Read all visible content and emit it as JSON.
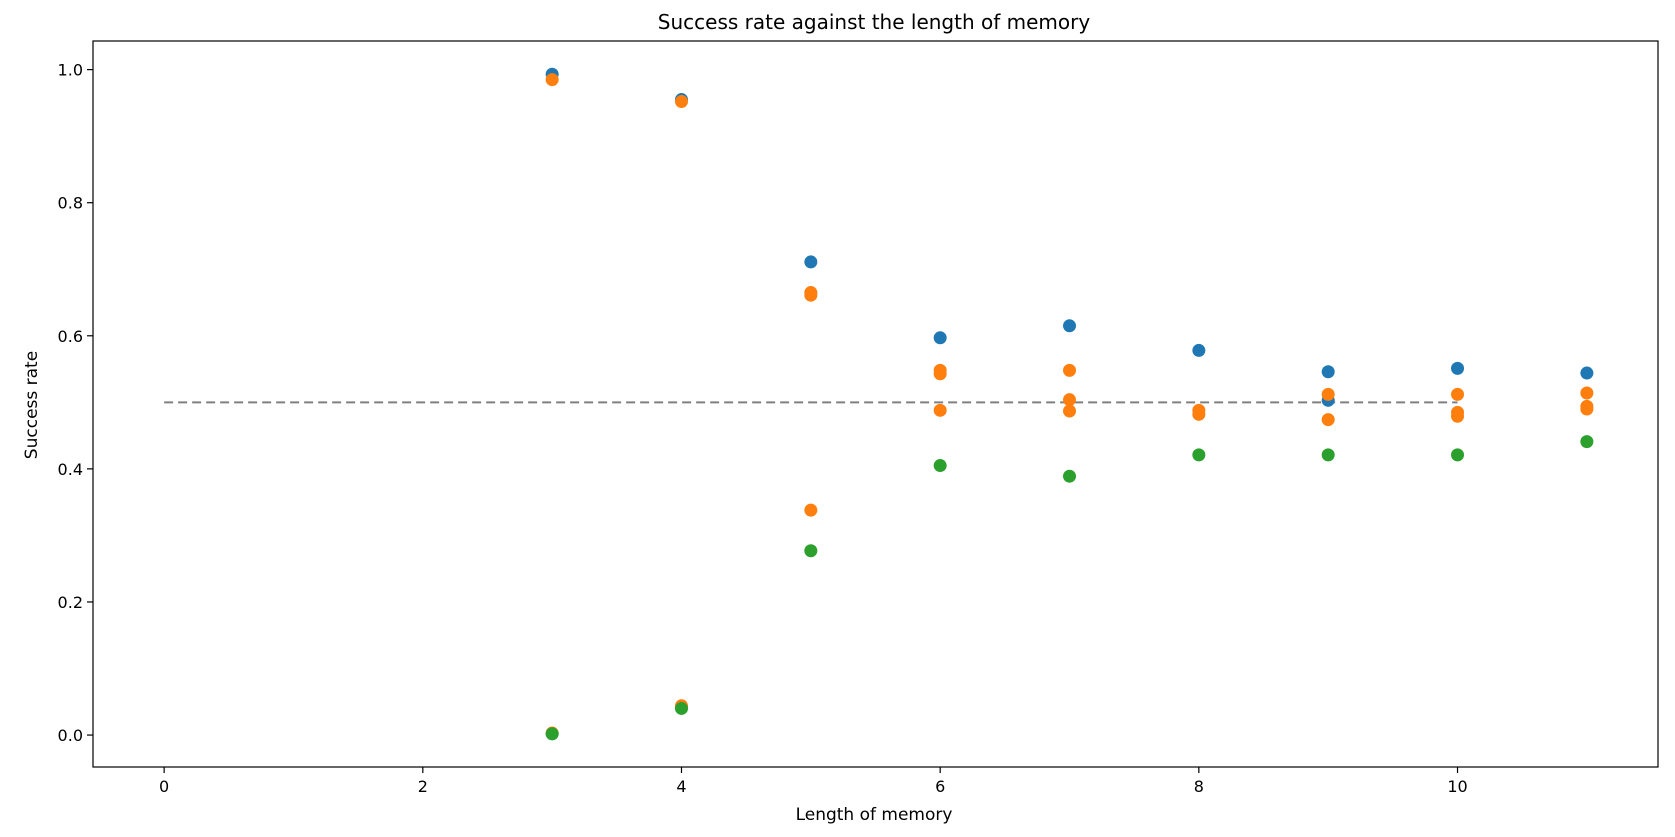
{
  "chart_data": {
    "type": "scatter",
    "title": "Success rate against the length of memory",
    "xlabel": "Length of memory",
    "ylabel": "Success rate",
    "xlim": [
      -0.55,
      11.55
    ],
    "ylim": [
      -0.048,
      1.043
    ],
    "xticks": [
      0,
      2,
      4,
      6,
      8,
      10
    ],
    "yticks": [
      0.0,
      0.2,
      0.4,
      0.6,
      0.8,
      1.0
    ],
    "xtick_labels": [
      "0",
      "2",
      "4",
      "6",
      "8",
      "10"
    ],
    "ytick_labels": [
      "0.0",
      "0.2",
      "0.4",
      "0.6",
      "0.8",
      "1.0"
    ],
    "grid": false,
    "reference_line": {
      "y": 0.5,
      "x_range": [
        0,
        10
      ],
      "style": "dashed",
      "color": "#808080"
    },
    "series": [
      {
        "color": "#1f77b4",
        "points": [
          {
            "x": 3,
            "y": 0.993
          },
          {
            "x": 3,
            "y": 0.002
          },
          {
            "x": 4,
            "y": 0.955
          },
          {
            "x": 4,
            "y": 0.042
          },
          {
            "x": 5,
            "y": 0.711
          },
          {
            "x": 6,
            "y": 0.597
          },
          {
            "x": 7,
            "y": 0.615
          },
          {
            "x": 8,
            "y": 0.578
          },
          {
            "x": 9,
            "y": 0.546
          },
          {
            "x": 9,
            "y": 0.503
          },
          {
            "x": 10,
            "y": 0.551
          },
          {
            "x": 11,
            "y": 0.544
          }
        ]
      },
      {
        "color": "#ff7f0e",
        "points": [
          {
            "x": 3,
            "y": 0.985
          },
          {
            "x": 3,
            "y": 0.003
          },
          {
            "x": 4,
            "y": 0.952
          },
          {
            "x": 4,
            "y": 0.044
          },
          {
            "x": 5,
            "y": 0.665
          },
          {
            "x": 5,
            "y": 0.661
          },
          {
            "x": 5,
            "y": 0.338
          },
          {
            "x": 6,
            "y": 0.548
          },
          {
            "x": 6,
            "y": 0.543
          },
          {
            "x": 6,
            "y": 0.488
          },
          {
            "x": 7,
            "y": 0.548
          },
          {
            "x": 7,
            "y": 0.504
          },
          {
            "x": 7,
            "y": 0.487
          },
          {
            "x": 8,
            "y": 0.488
          },
          {
            "x": 8,
            "y": 0.482
          },
          {
            "x": 9,
            "y": 0.512
          },
          {
            "x": 9,
            "y": 0.474
          },
          {
            "x": 10,
            "y": 0.512
          },
          {
            "x": 10,
            "y": 0.485
          },
          {
            "x": 10,
            "y": 0.479
          },
          {
            "x": 11,
            "y": 0.514
          },
          {
            "x": 11,
            "y": 0.494
          },
          {
            "x": 11,
            "y": 0.49
          }
        ]
      },
      {
        "color": "#2ca02c",
        "points": [
          {
            "x": 3,
            "y": 0.002
          },
          {
            "x": 4,
            "y": 0.04
          },
          {
            "x": 5,
            "y": 0.277
          },
          {
            "x": 6,
            "y": 0.405
          },
          {
            "x": 7,
            "y": 0.389
          },
          {
            "x": 8,
            "y": 0.421
          },
          {
            "x": 9,
            "y": 0.421
          },
          {
            "x": 10,
            "y": 0.421
          },
          {
            "x": 11,
            "y": 0.441
          }
        ]
      }
    ]
  }
}
